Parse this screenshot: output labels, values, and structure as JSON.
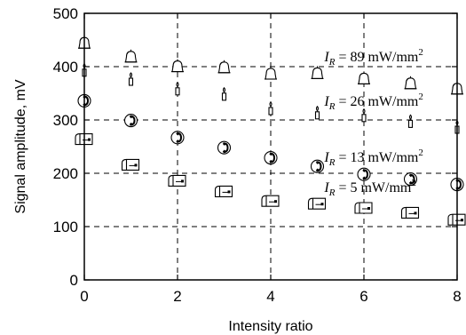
{
  "chart_data": {
    "type": "scatter",
    "xlabel": "Intensity ratio",
    "ylabel": "Signal amplitude, mV",
    "xlim": [
      0,
      8
    ],
    "ylim": [
      0,
      500
    ],
    "x_ticks": [
      0,
      2,
      4,
      6,
      8
    ],
    "y_ticks": [
      0,
      100,
      200,
      300,
      400,
      500
    ],
    "grid": true,
    "series": [
      {
        "name": "I_R = 89 mW/mm²",
        "label": {
          "symbol": "I",
          "sub": "R",
          "rest": " = 89 mW/mm",
          "sup": "2"
        },
        "marker": "bell-icon",
        "label_at": [
          5.15,
          410
        ],
        "x": [
          0,
          1,
          2,
          3,
          4,
          5,
          6,
          7,
          8
        ],
        "y": [
          443,
          417,
          399,
          397,
          385,
          386,
          376,
          367,
          357
        ]
      },
      {
        "name": "I_R = 26 mW/mm²",
        "label": {
          "symbol": "I",
          "sub": "R",
          "rest": " = 26 mW/mm",
          "sup": "2"
        },
        "marker": "candle-icon",
        "label_at": [
          5.15,
          327
        ],
        "x": [
          0,
          1,
          2,
          3,
          4,
          5,
          6,
          7,
          8
        ],
        "y": [
          392,
          375,
          357,
          347,
          320,
          312,
          307,
          296,
          285
        ]
      },
      {
        "name": "I_R = 13 mW/mm²",
        "label": {
          "symbol": "I",
          "sub": "R",
          "rest": " = 13 mW/mm",
          "sup": "2"
        },
        "marker": "phone-icon",
        "label_at": [
          5.15,
          222
        ],
        "x": [
          0,
          1,
          2,
          3,
          4,
          5,
          6,
          7,
          8
        ],
        "y": [
          336,
          299,
          267,
          248,
          229,
          213,
          198,
          189,
          179
        ]
      },
      {
        "name": "I_R = 5 mW/mm²",
        "label": {
          "symbol": "I",
          "sub": "R",
          "rest": " = 5 mW/mm",
          "sup": "2"
        },
        "marker": "mailbox-icon",
        "label_at": [
          5.15,
          165
        ],
        "x": [
          0,
          1,
          2,
          3,
          4,
          5,
          6,
          7,
          8
        ],
        "y": [
          264,
          216,
          186,
          166,
          148,
          143,
          135,
          126,
          113
        ]
      }
    ]
  }
}
